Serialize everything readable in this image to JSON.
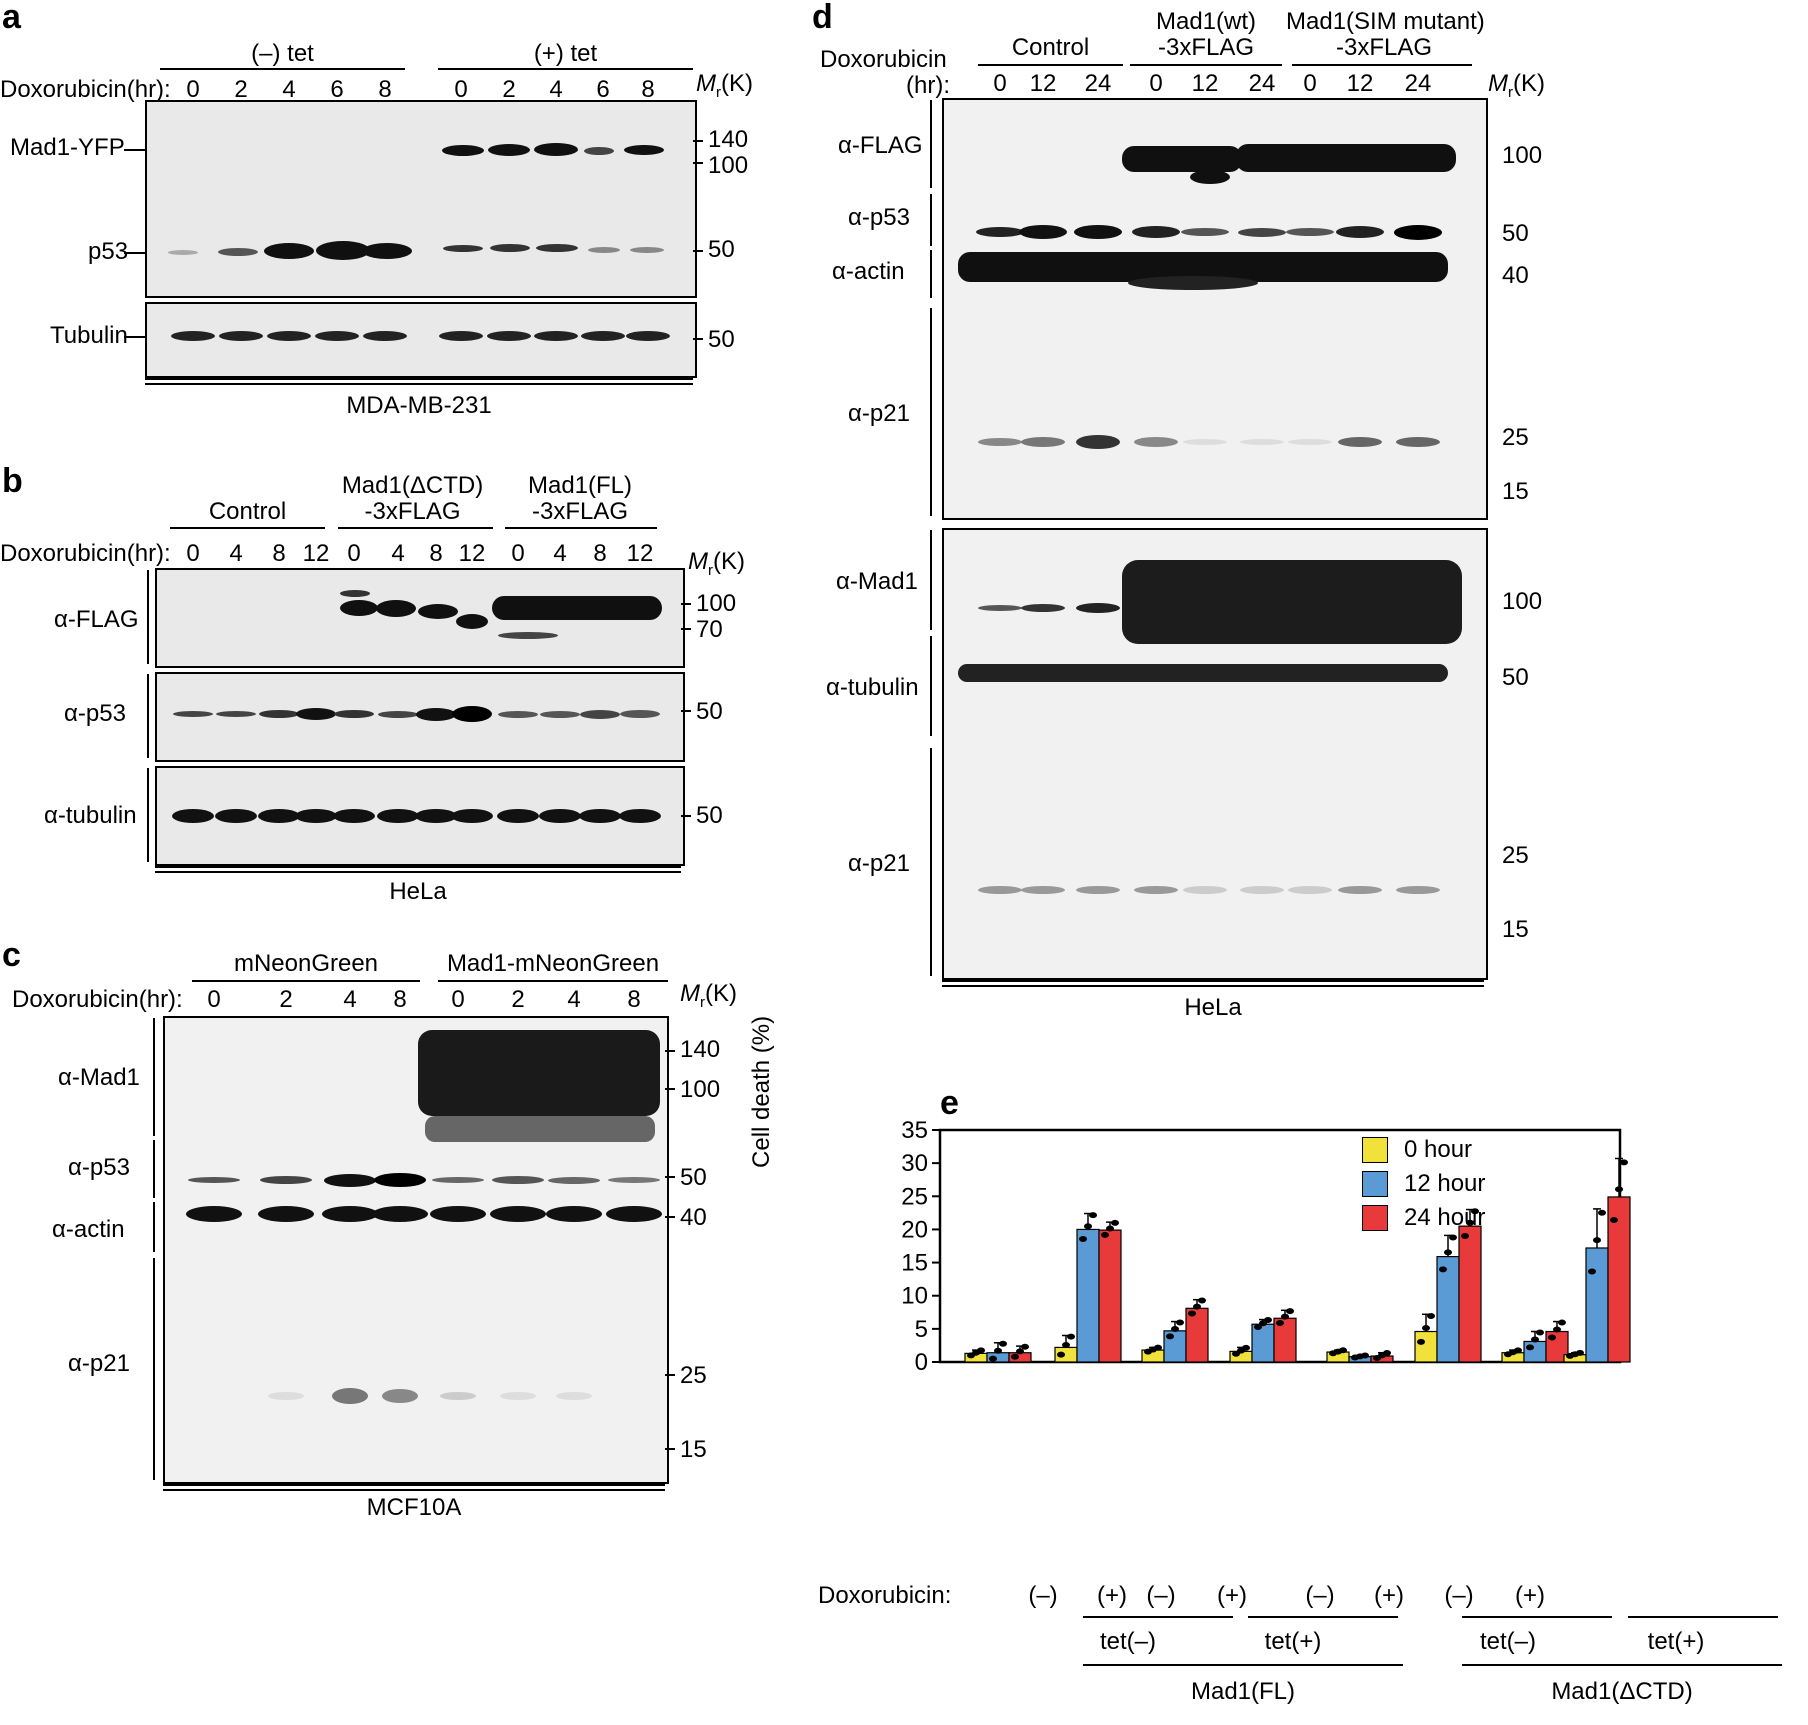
{
  "panel_a": {
    "letter": "a",
    "groups": [
      "(–) tet",
      "(+) tet"
    ],
    "treatment_label": "Doxorubicin(hr):",
    "times_left": [
      "0",
      "2",
      "4",
      "6",
      "8"
    ],
    "times_right": [
      "0",
      "2",
      "4",
      "6",
      "8"
    ],
    "mr_label": "M",
    "mr_sub": "r",
    "mr_unit": "(K)",
    "rows": [
      "Mad1-YFP",
      "p53",
      "Tubulin"
    ],
    "markers": [
      "140",
      "100",
      "50",
      "50"
    ],
    "cell_line": "MDA-MB-231"
  },
  "panel_b": {
    "letter": "b",
    "groups": [
      "Control",
      "Mad1(ΔCTD)",
      "-3xFLAG",
      "Mad1(FL)",
      "-3xFLAG"
    ],
    "treatment_label": "Doxorubicin(hr):",
    "times": [
      "0",
      "4",
      "8",
      "12",
      "0",
      "4",
      "8",
      "12",
      "0",
      "4",
      "8",
      "12"
    ],
    "mr_label": "M",
    "mr_sub": "r",
    "mr_unit": "(K)",
    "rows": [
      "α-FLAG",
      "α-p53",
      "α-tubulin"
    ],
    "markers": [
      "100",
      "70",
      "50",
      "50"
    ],
    "cell_line": "HeLa"
  },
  "panel_c": {
    "letter": "c",
    "groups": [
      "mNeonGreen",
      "Mad1-mNeonGreen"
    ],
    "treatment_label": "Doxorubicin(hr):",
    "times": [
      "0",
      "2",
      "4",
      "8",
      "0",
      "2",
      "4",
      "8"
    ],
    "mr_label": "M",
    "mr_sub": "r",
    "mr_unit": "(K)",
    "rows": [
      "α-Mad1",
      "α-p53",
      "α-actin",
      "α-p21"
    ],
    "markers": [
      "140",
      "100",
      "50",
      "40",
      "25",
      "15"
    ],
    "cell_line": "MCF10A"
  },
  "panel_d": {
    "letter": "d",
    "treatment_label": "Doxorubicin",
    "treatment_unit": "(hr):",
    "groups": [
      "Control",
      "Mad1(wt)",
      "-3xFLAG",
      "Mad1(SIM mutant)",
      "-3xFLAG"
    ],
    "times": [
      "0",
      "12",
      "24",
      "0",
      "12",
      "24",
      "0",
      "12",
      "24"
    ],
    "mr_label": "M",
    "mr_sub": "r",
    "mr_unit": "(K)",
    "rows_top": [
      "α-FLAG",
      "α-p53",
      "α-actin",
      "α-p21"
    ],
    "markers_top": [
      "100",
      "50",
      "40",
      "25",
      "15"
    ],
    "rows_bottom": [
      "α-Mad1",
      "α-tubulin",
      "α-p21"
    ],
    "markers_bottom": [
      "100",
      "50",
      "25",
      "15"
    ],
    "cell_line": "HeLa"
  },
  "panel_e": {
    "letter": "e",
    "doxorubicin_label": "Doxorubicin:",
    "dox_states": [
      "(–)",
      "(+)",
      "(–)",
      "(+)",
      "(–)",
      "(+)",
      "(–)",
      "(+)"
    ],
    "tet_groups": [
      "tet(–)",
      "tet(+)",
      "tet(–)",
      "tet(+)"
    ],
    "constructs": [
      "Mad1(FL)",
      "Mad1(ΔCTD)"
    ]
  },
  "chart_data": {
    "type": "bar",
    "title": "",
    "xlabel": "",
    "ylabel": "Cell death (%)",
    "ylim": [
      0,
      35
    ],
    "yticks": [
      0,
      5,
      10,
      15,
      20,
      25,
      30,
      35
    ],
    "grid": false,
    "legend_position": "top-right",
    "categories": [
      "Mad1(FL) tet(–) Dox(–)",
      "Mad1(FL) tet(–) Dox(+)",
      "Mad1(FL) tet(+) Dox(–)",
      "Mad1(FL) tet(+) Dox(+)",
      "Mad1(ΔCTD) tet(–) Dox(–)",
      "Mad1(ΔCTD) tet(–) Dox(+)",
      "Mad1(ΔCTD) tet(+) Dox(–)",
      "Mad1(ΔCTD) tet(+) Dox(+)"
    ],
    "series": [
      {
        "name": "0 hour",
        "color": "#f2e13a",
        "values": [
          1.3,
          2.2,
          1.8,
          1.6,
          1.5,
          4.6,
          1.4,
          1.1
        ],
        "errors": [
          0.5,
          1.8,
          0.4,
          0.6,
          0.3,
          2.6,
          0.4,
          0.3
        ]
      },
      {
        "name": "12 hour",
        "color": "#5b9bd5",
        "values": [
          1.4,
          20.0,
          4.7,
          5.7,
          0.8,
          15.9,
          3.1,
          17.2
        ],
        "errors": [
          1.5,
          2.4,
          1.4,
          0.7,
          0.2,
          3.2,
          1.5,
          5.9
        ]
      },
      {
        "name": "24 hour",
        "color": "#e83a3a",
        "values": [
          1.4,
          19.9,
          8.1,
          6.6,
          0.9,
          20.5,
          4.6,
          24.9
        ],
        "errors": [
          1.0,
          1.2,
          1.3,
          1.2,
          0.5,
          2.5,
          1.5,
          5.8
        ]
      }
    ]
  }
}
